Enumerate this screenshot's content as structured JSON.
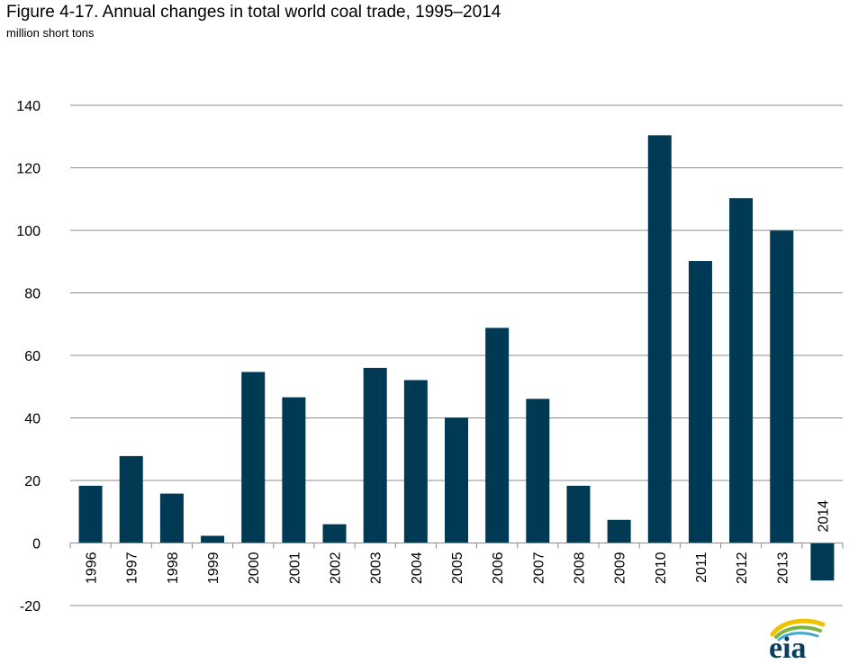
{
  "chart_data": {
    "type": "bar",
    "title": "Figure 4-17. Annual changes in total world coal trade, 1995–2014",
    "subtitle": "million short tons",
    "categories": [
      "1996",
      "1997",
      "1998",
      "1999",
      "2000",
      "2001",
      "2002",
      "2003",
      "2004",
      "2005",
      "2006",
      "2007",
      "2008",
      "2009",
      "2010",
      "2011",
      "2012",
      "2013",
      "2014"
    ],
    "values": [
      18.3,
      27.8,
      15.8,
      2.3,
      54.7,
      46.6,
      6.0,
      56.0,
      52.1,
      40.1,
      68.8,
      46.1,
      18.3,
      7.4,
      130.4,
      90.2,
      110.3,
      99.9,
      -12.0
    ],
    "ylim": [
      -20,
      140
    ],
    "yticks": [
      -20,
      0,
      20,
      40,
      60,
      80,
      100,
      120,
      140
    ],
    "grid": true,
    "bar_color": "#003953"
  },
  "logo": {
    "text": "eia",
    "colors": {
      "text": "#0b3d5c",
      "swoosh_yellow": "#f2c200",
      "swoosh_green": "#7cb342",
      "swoosh_blue": "#3fa9d6"
    }
  }
}
